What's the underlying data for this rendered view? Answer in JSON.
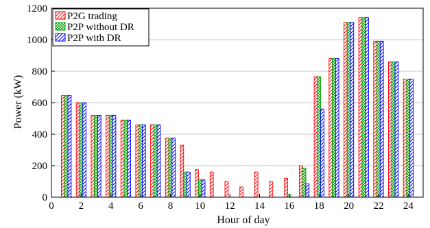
{
  "chart_data": {
    "type": "bar",
    "xlabel": "Hour of day",
    "ylabel": "Power (kW)",
    "xlim": [
      0,
      25
    ],
    "ylim": [
      0,
      1200
    ],
    "xticks": [
      0,
      2,
      4,
      6,
      8,
      10,
      12,
      14,
      16,
      18,
      20,
      22,
      24
    ],
    "yticks": [
      0,
      200,
      400,
      600,
      800,
      1000,
      1200
    ],
    "grid": "horizontal",
    "legend_position": "top-left",
    "categories": [
      1,
      2,
      3,
      4,
      5,
      6,
      7,
      8,
      9,
      10,
      11,
      12,
      13,
      14,
      15,
      16,
      17,
      18,
      19,
      20,
      21,
      22,
      23,
      24
    ],
    "series": [
      {
        "name": "P2G trading",
        "color": "#ff0000",
        "hatch": "diagonal",
        "values": [
          645,
          600,
          520,
          520,
          490,
          460,
          460,
          375,
          330,
          175,
          160,
          100,
          65,
          160,
          100,
          120,
          200,
          765,
          880,
          1110,
          1140,
          990,
          860,
          750
        ]
      },
      {
        "name": "P2P without DR",
        "color": "#00a000",
        "hatch": "cross",
        "values": [
          645,
          600,
          520,
          520,
          490,
          460,
          460,
          375,
          160,
          110,
          0,
          0,
          0,
          0,
          0,
          15,
          185,
          765,
          880,
          1110,
          1140,
          990,
          860,
          750
        ]
      },
      {
        "name": "P2P with DR",
        "color": "#0000ff",
        "hatch": "diagonal",
        "values": [
          645,
          600,
          520,
          520,
          490,
          460,
          460,
          375,
          160,
          110,
          0,
          0,
          0,
          0,
          0,
          0,
          85,
          560,
          880,
          1110,
          1140,
          990,
          860,
          750
        ]
      }
    ]
  }
}
